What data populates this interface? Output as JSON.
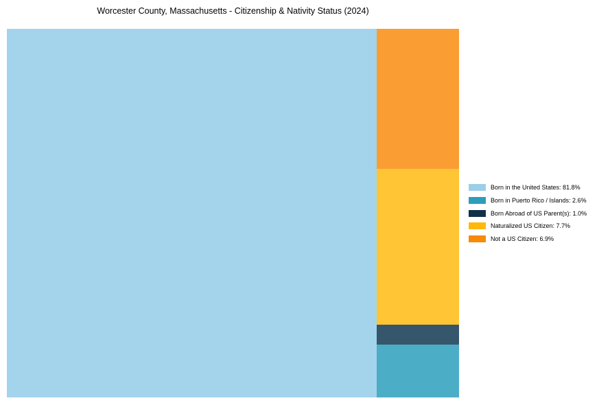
{
  "title": "Worcester County, Massachusetts - Citizenship & Nativity Status (2024)",
  "background_color": "#ffffff",
  "chart_data": {
    "type": "treemap",
    "title": "Worcester County, Massachusetts - Citizenship & Nativity Status (2024)",
    "categories": [
      "Born in the United States",
      "Born in Puerto Rico / Islands",
      "Born Abroad of US Parent(s)",
      "Naturalized US Citizen",
      "Not a US Citizen"
    ],
    "values": [
      81.8,
      2.6,
      1.0,
      7.7,
      6.9
    ],
    "unit": "%",
    "colors": [
      "#9ccfe7",
      "#2b9ebb",
      "#11304a",
      "#ffb80e",
      "#f78a06"
    ],
    "block_colors": [
      "#a3d4eb",
      "#4baec6",
      "#36566b",
      "#ffc535",
      "#fa9e33"
    ],
    "legend_position": "right",
    "legend_labels": [
      "Born in the United States: 81.8%",
      "Born in Puerto Rico / Islands: 2.6%",
      "Born Abroad of US Parent(s): 1.0%",
      "Naturalized US Citizen: 7.7%",
      "Not a US Citizen: 6.9%"
    ]
  }
}
